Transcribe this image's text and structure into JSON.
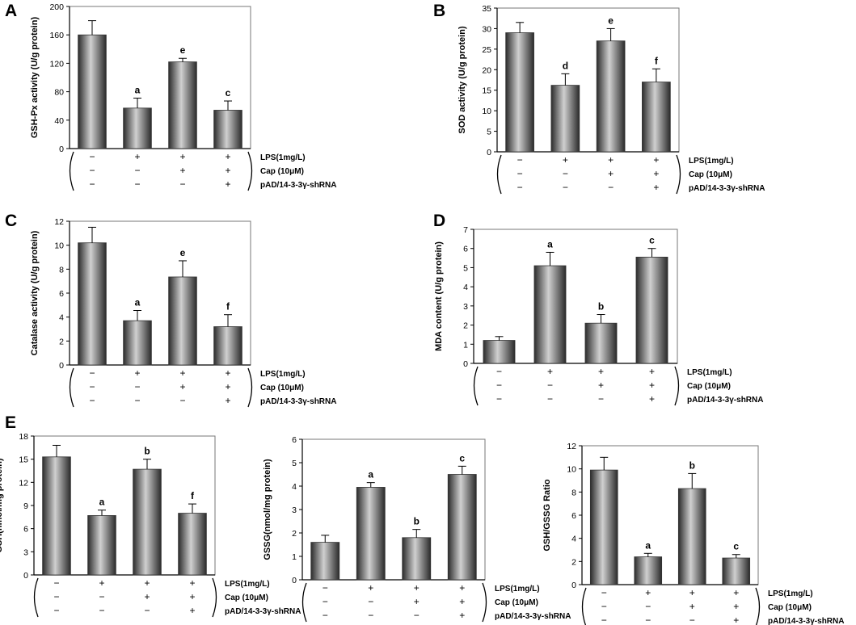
{
  "conditions": {
    "labels": [
      "LPS(1mg/L)",
      "Cap (10μM)",
      "pAD/14-3-3γ-shRNA"
    ],
    "matrix": [
      [
        "−",
        "+",
        "+",
        "+"
      ],
      [
        "−",
        "−",
        "+",
        "+"
      ],
      [
        "−",
        "−",
        "−",
        "+"
      ]
    ]
  },
  "chart_data": [
    {
      "id": "gshpx",
      "panel_label": "A",
      "type": "bar",
      "ylabel": "GSH-Px activity (U/g protein)",
      "ylim": [
        0,
        200
      ],
      "yticks": [
        0,
        40,
        80,
        120,
        160,
        200
      ],
      "values": [
        160,
        57,
        122,
        54
      ],
      "errors": [
        20,
        14,
        5,
        13
      ],
      "sig": [
        "",
        "a",
        "e",
        "c"
      ]
    },
    {
      "id": "sod",
      "panel_label": "B",
      "type": "bar",
      "ylabel": "SOD activity (U/g protein)",
      "ylim": [
        0,
        35
      ],
      "yticks": [
        0,
        5,
        10,
        15,
        20,
        25,
        30,
        35
      ],
      "values": [
        29,
        16.2,
        27,
        17
      ],
      "errors": [
        2.5,
        2.8,
        3,
        3.2
      ],
      "sig": [
        "",
        "d",
        "e",
        "f"
      ]
    },
    {
      "id": "catalase",
      "panel_label": "C",
      "type": "bar",
      "ylabel": "Catalase activity  (U/g protein)",
      "ylim": [
        0,
        12
      ],
      "yticks": [
        0,
        2,
        4,
        6,
        8,
        10,
        12
      ],
      "values": [
        10.2,
        3.7,
        7.35,
        3.2
      ],
      "errors": [
        1.3,
        0.85,
        1.35,
        1.0
      ],
      "sig": [
        "",
        "a",
        "e",
        "f"
      ]
    },
    {
      "id": "mda",
      "panel_label": "D",
      "type": "bar",
      "ylabel": "MDA content (U/g protein)",
      "ylim": [
        0,
        7
      ],
      "yticks": [
        0,
        1,
        2,
        3,
        4,
        5,
        6,
        7
      ],
      "values": [
        1.2,
        5.1,
        2.1,
        5.55
      ],
      "errors": [
        0.2,
        0.7,
        0.45,
        0.45
      ],
      "sig": [
        "",
        "a",
        "b",
        "c"
      ]
    },
    {
      "id": "gsh",
      "panel_label": "E",
      "type": "bar",
      "ylabel": "GSH(nmol/mg protein)",
      "ylim": [
        0,
        18
      ],
      "yticks": [
        0,
        3,
        6,
        9,
        12,
        15,
        18
      ],
      "values": [
        15.3,
        7.7,
        13.7,
        8.0
      ],
      "errors": [
        1.5,
        0.7,
        1.3,
        1.2
      ],
      "sig": [
        "",
        "a",
        "b",
        "f"
      ]
    },
    {
      "id": "gssg",
      "panel_label": "",
      "type": "bar",
      "ylabel": "GSSG(nmol/mg protein)",
      "ylim": [
        0,
        6
      ],
      "yticks": [
        0,
        1,
        2,
        3,
        4,
        5,
        6
      ],
      "values": [
        1.6,
        3.95,
        1.8,
        4.5
      ],
      "errors": [
        0.3,
        0.2,
        0.35,
        0.35
      ],
      "sig": [
        "",
        "a",
        "b",
        "c"
      ]
    },
    {
      "id": "ratio",
      "panel_label": "",
      "type": "bar",
      "ylabel": "GSH/GSSG Ratio",
      "ylim": [
        0,
        12
      ],
      "yticks": [
        0,
        2,
        4,
        6,
        8,
        10,
        12
      ],
      "values": [
        9.9,
        2.4,
        8.3,
        2.3
      ],
      "errors": [
        1.1,
        0.3,
        1.3,
        0.3
      ],
      "sig": [
        "",
        "a",
        "b",
        "c"
      ]
    }
  ]
}
